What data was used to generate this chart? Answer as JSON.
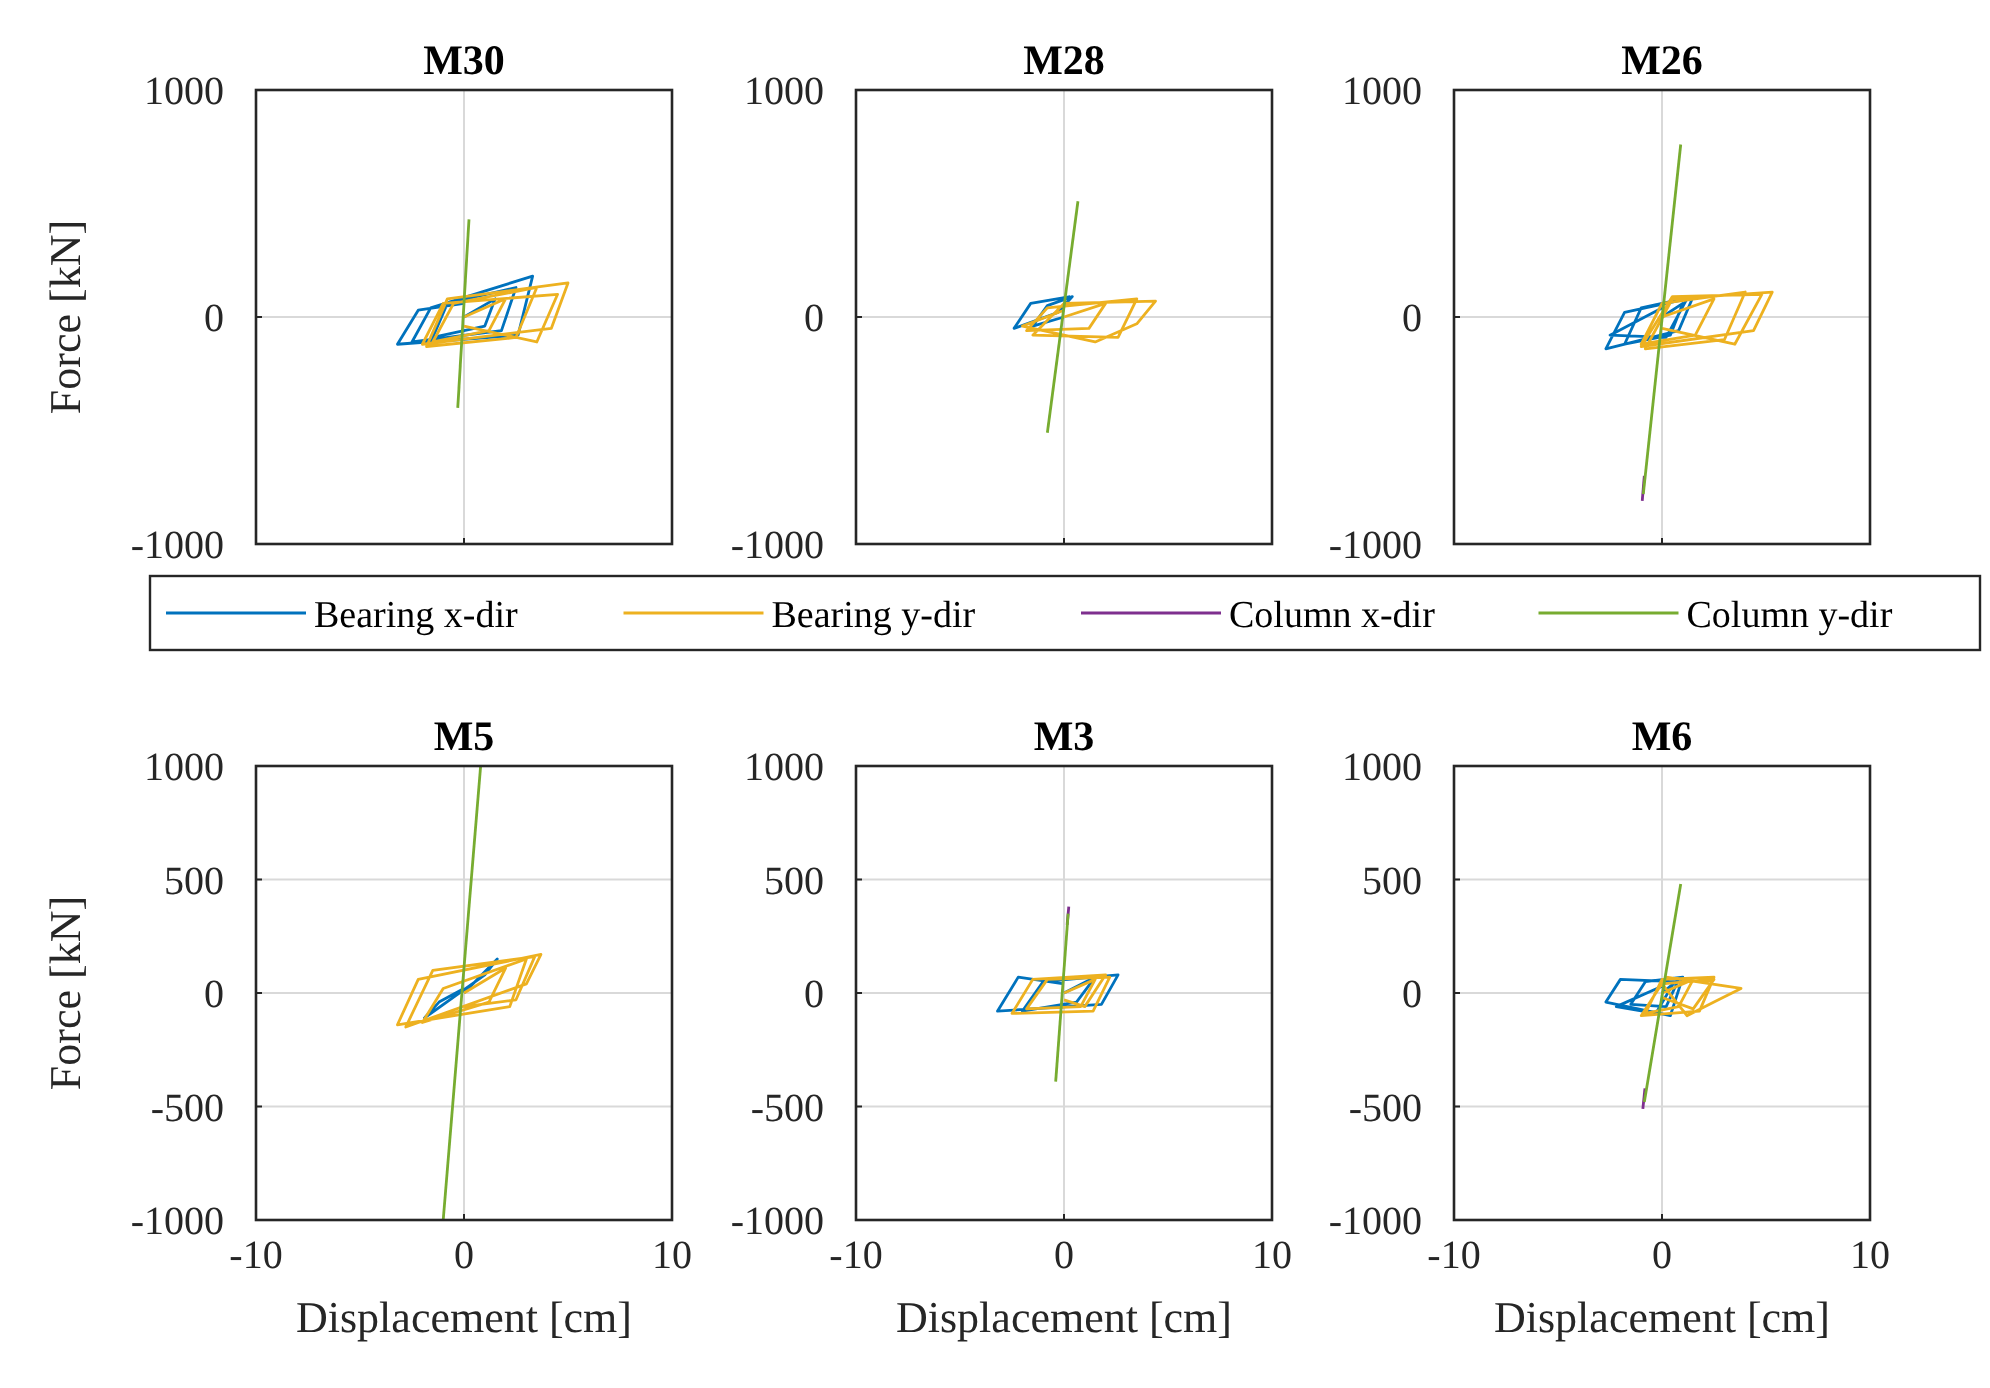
{
  "chart_data": [
    {
      "type": "line",
      "title": "M30",
      "ylabel": "Force [kN]",
      "xlim": [
        -10,
        10
      ],
      "ylim": [
        -1000,
        1000
      ],
      "xticks": [
        -10,
        0,
        10
      ],
      "yticks": [
        -1000,
        0,
        1000
      ],
      "grid": true,
      "tick_labels": "y",
      "legend": "bottom",
      "series": [
        {
          "name": "Bearing x-dir",
          "color": "#0072bd",
          "x": [
            0,
            1.5,
            1.0,
            -1.5,
            -0.8,
            2.5,
            1.8,
            -2.5,
            -1.6,
            3.3,
            2.6,
            -3.2,
            -2.2,
            0
          ],
          "values": [
            0,
            80,
            -40,
            -90,
            60,
            130,
            -60,
            -110,
            40,
            180,
            -80,
            -120,
            30,
            60
          ]
        },
        {
          "name": "Bearing y-dir",
          "color": "#edb120",
          "x": [
            0,
            2,
            1.2,
            -1.5,
            -0.5,
            3.5,
            2.5,
            -1.8,
            -0.8,
            5,
            4.2,
            -2,
            -1,
            4.5,
            3.5,
            0
          ],
          "values": [
            0,
            80,
            -60,
            -110,
            60,
            130,
            -90,
            -130,
            80,
            150,
            -50,
            -120,
            60,
            100,
            -110,
            -40
          ]
        },
        {
          "name": "Column x-dir",
          "color": "#7e2f8e",
          "x": [
            null,
            null
          ],
          "values": [
            null,
            null
          ]
        },
        {
          "name": "Column y-dir",
          "color": "#77ac30",
          "x": [
            -0.3,
            0.24
          ],
          "values": [
            -400,
            430
          ]
        }
      ]
    },
    {
      "type": "line",
      "title": "M28",
      "xlim": [
        -10,
        10
      ],
      "ylim": [
        -1000,
        1000
      ],
      "xticks": [
        -10,
        0,
        10
      ],
      "yticks": [
        -1000,
        0,
        1000
      ],
      "grid": true,
      "tick_labels": "y",
      "series": [
        {
          "color": "#0072bd",
          "x": [
            0,
            -1.5,
            -0.8,
            0.4,
            -0.3,
            -2.4,
            -1.6,
            0.3
          ],
          "values": [
            0,
            -40,
            50,
            90,
            20,
            -50,
            60,
            90
          ]
        },
        {
          "color": "#edb120",
          "x": [
            0,
            2,
            1.2,
            -1.8,
            -0.8,
            3.5,
            2.6,
            -1.5,
            0,
            4.4,
            3.5,
            1.5,
            -2,
            0
          ],
          "values": [
            0,
            60,
            -50,
            -60,
            40,
            80,
            -90,
            -80,
            60,
            70,
            -30,
            -110,
            -40,
            30
          ]
        },
        {
          "color": "#77ac30",
          "x": [
            -0.8,
            0.67
          ],
          "values": [
            -510,
            510
          ]
        }
      ]
    },
    {
      "type": "line",
      "title": "M26",
      "xlim": [
        -10,
        10
      ],
      "ylim": [
        -1000,
        1000
      ],
      "xticks": [
        -10,
        0,
        10
      ],
      "yticks": [
        -1000,
        0,
        1000
      ],
      "grid": true,
      "tick_labels": "y",
      "series": [
        {
          "color": "#0072bd",
          "x": [
            0,
            1,
            0.4,
            -1.8,
            -1,
            1.5,
            0.8,
            -2.7,
            -1.8,
            1.2,
            0.2,
            -2.5,
            0
          ],
          "values": [
            0,
            60,
            -80,
            -120,
            40,
            90,
            -60,
            -140,
            20,
            80,
            -90,
            -80,
            40
          ]
        },
        {
          "color": "#edb120",
          "x": [
            0,
            2.5,
            1.6,
            -1,
            0,
            4,
            3,
            -0.8,
            0.5,
            5.3,
            4.4,
            -1,
            0.5,
            4.8,
            3.5,
            0
          ],
          "values": [
            0,
            80,
            -80,
            -120,
            60,
            110,
            -100,
            -140,
            80,
            110,
            -60,
            -130,
            90,
            100,
            -120,
            -50
          ]
        },
        {
          "color": "#7e2f8e",
          "x": [
            -0.95,
            -0.85
          ],
          "values": [
            -810,
            -700
          ]
        },
        {
          "color": "#77ac30",
          "x": [
            -0.9,
            0.9
          ],
          "values": [
            -780,
            760
          ]
        }
      ]
    },
    {
      "type": "line",
      "title": "M5",
      "xlabel": "Displacement [cm]",
      "ylabel": "Force [kN]",
      "xlim": [
        -10,
        10
      ],
      "ylim": [
        -1000,
        1000
      ],
      "xticks": [
        -10,
        0,
        10
      ],
      "yticks": [
        -1000,
        -500,
        0,
        500,
        1000
      ],
      "grid": true,
      "series": [
        {
          "color": "#0072bd",
          "x": [
            0,
            1.6,
            1.0,
            -1.9,
            -1.2,
            0
          ],
          "values": [
            0,
            150,
            80,
            -110,
            -40,
            20
          ]
        },
        {
          "color": "#edb120",
          "x": [
            0,
            2,
            1.2,
            -2,
            -1,
            3,
            2.2,
            -3.2,
            -2.2,
            3.7,
            3,
            -2.8,
            -1.5,
            3.4,
            2.5,
            0
          ],
          "values": [
            0,
            110,
            -40,
            -130,
            20,
            150,
            -60,
            -140,
            60,
            170,
            40,
            -150,
            100,
            160,
            -30,
            -60
          ]
        },
        {
          "color": "#77ac30",
          "x": [
            -1.0,
            0.8
          ],
          "values": [
            -1000,
            1000
          ]
        }
      ]
    },
    {
      "type": "line",
      "title": "M3",
      "xlabel": "Displacement [cm]",
      "xlim": [
        -10,
        10
      ],
      "ylim": [
        -1000,
        1000
      ],
      "xticks": [
        -10,
        0,
        10
      ],
      "yticks": [
        -1000,
        -500,
        0,
        500,
        1000
      ],
      "grid": true,
      "series": [
        {
          "color": "#0072bd",
          "x": [
            0,
            1.5,
            0.6,
            -2,
            -1,
            2.6,
            1.8,
            -3.2,
            -2.2,
            0
          ],
          "values": [
            0,
            70,
            -40,
            -80,
            50,
            80,
            -50,
            -80,
            70,
            40
          ]
        },
        {
          "color": "#edb120",
          "x": [
            0,
            1.5,
            0.8,
            -1.8,
            -0.8,
            2.2,
            1.4,
            -2.5,
            -1.5,
            2,
            1,
            0
          ],
          "values": [
            0,
            60,
            -60,
            -70,
            60,
            70,
            -80,
            -90,
            60,
            80,
            -60,
            -30
          ]
        },
        {
          "color": "#7e2f8e",
          "x": [
            0.15,
            0.23
          ],
          "values": [
            300,
            380
          ]
        },
        {
          "color": "#77ac30",
          "x": [
            -0.4,
            0.2
          ],
          "values": [
            -390,
            350
          ]
        }
      ]
    },
    {
      "type": "line",
      "title": "M6",
      "xlabel": "Displacement [cm]",
      "xlim": [
        -10,
        10
      ],
      "ylim": [
        -1000,
        1000
      ],
      "xticks": [
        -10,
        0,
        10
      ],
      "yticks": [
        -1000,
        -500,
        0,
        500,
        1000
      ],
      "grid": true,
      "series": [
        {
          "color": "#0072bd",
          "x": [
            0,
            0.8,
            0.2,
            -1.5,
            -0.8,
            1,
            0.4,
            -2.7,
            -2,
            0.6,
            -0.3,
            -2.2,
            0
          ],
          "values": [
            0,
            60,
            -60,
            -50,
            50,
            70,
            -100,
            -40,
            60,
            50,
            -90,
            -60,
            30
          ]
        },
        {
          "color": "#edb120",
          "x": [
            0,
            1.5,
            0.8,
            -0.8,
            0,
            2.5,
            1.8,
            -1,
            0.2,
            3.8,
            2.5,
            1.2,
            0,
            2.5,
            1.5,
            0
          ],
          "values": [
            0,
            60,
            -60,
            -90,
            60,
            70,
            -80,
            -100,
            70,
            20,
            -40,
            -100,
            40,
            60,
            -70,
            -20
          ]
        },
        {
          "color": "#7e2f8e",
          "x": [
            -0.92,
            -0.82
          ],
          "values": [
            -510,
            -420
          ]
        },
        {
          "color": "#77ac30",
          "x": [
            -0.85,
            0.9
          ],
          "values": [
            -480,
            480
          ]
        }
      ]
    }
  ]
}
